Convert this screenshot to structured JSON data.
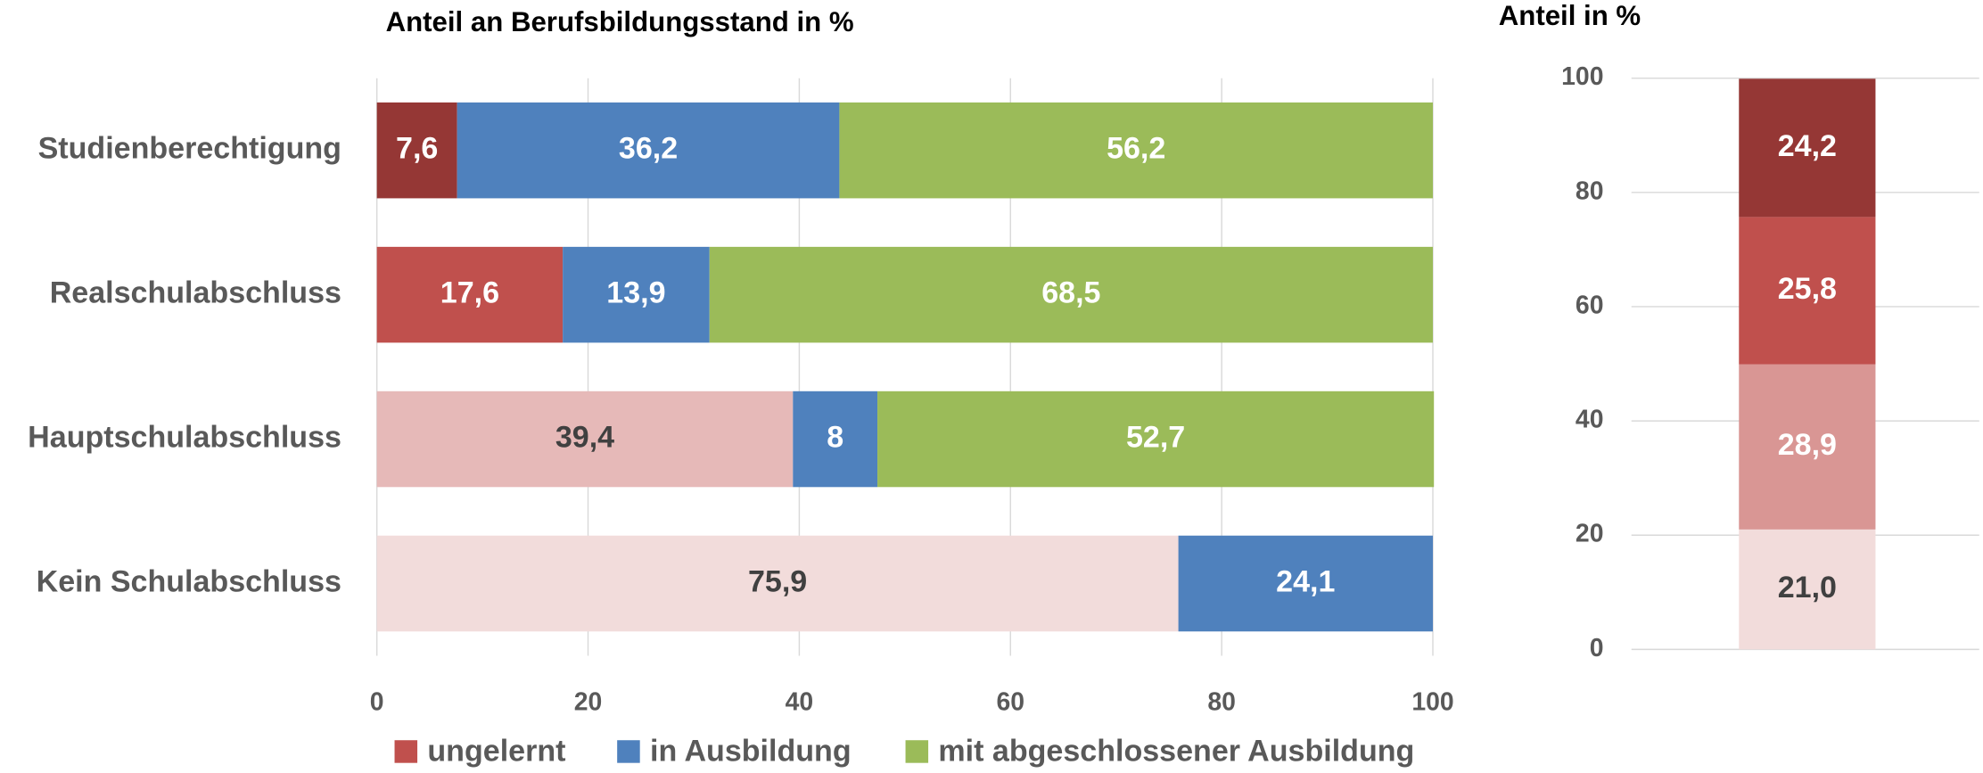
{
  "chart_data": [
    {
      "type": "stacked_barh",
      "title": "Anteil an Berufsbildungsstand in %",
      "categories": [
        "Studienberechtigung",
        "Realschulabschluss",
        "Hauptschulabschluss",
        "Kein Schulabschluss"
      ],
      "series": [
        {
          "name": "ungelernt",
          "color": "#c0504d",
          "colors": [
            "#953735",
            "#c0504d",
            "#e6b9b8",
            "#f2dcdb"
          ],
          "values": [
            7.6,
            17.6,
            39.4,
            75.9
          ],
          "value_labels": [
            "7,6",
            "17,6",
            "39,4",
            "75,9"
          ]
        },
        {
          "name": "in Ausbildung",
          "color": "#4f81bd",
          "values": [
            36.2,
            13.9,
            8,
            24.1
          ],
          "value_labels": [
            "36,2",
            "13,9",
            "8",
            "24,1"
          ]
        },
        {
          "name": "mit abgeschlossener Ausbildung",
          "color": "#9bbb59",
          "values": [
            56.2,
            68.5,
            52.7,
            null
          ],
          "value_labels": [
            "56,2",
            "68,5",
            "52,7",
            null
          ]
        }
      ],
      "xlim": [
        0,
        100
      ],
      "xticks": [
        0,
        20,
        40,
        60,
        80,
        100
      ],
      "grid": true,
      "legend": "bottom"
    },
    {
      "type": "stacked_column",
      "title": "Anteil in %",
      "categories": [
        null
      ],
      "series": [
        {
          "color": "#f2dcdb",
          "values": [
            21.0
          ],
          "value_labels": [
            "21,0"
          ]
        },
        {
          "color": "#d99694",
          "values": [
            28.9
          ],
          "value_labels": [
            "28,9"
          ]
        },
        {
          "color": "#c0504d",
          "values": [
            25.8
          ],
          "value_labels": [
            "25,8"
          ]
        },
        {
          "color": "#953735",
          "values": [
            24.2
          ],
          "value_labels": [
            "24,2"
          ]
        }
      ],
      "ylim": [
        0,
        100
      ],
      "yticks": [
        0,
        20,
        40,
        60,
        80,
        100
      ],
      "grid": true
    }
  ]
}
